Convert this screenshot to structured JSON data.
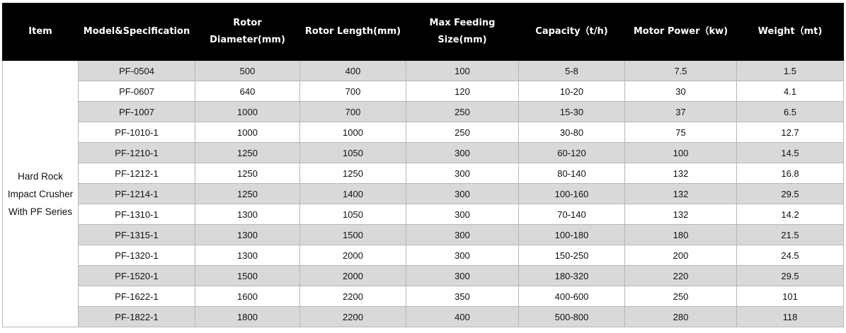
{
  "headers": [
    "Item",
    "Model&Specification",
    "Rotor Diameter(mm)",
    "Rotor Length(mm)",
    "Max Feeding Size(mm)",
    "Capacity（t/h)",
    "Motor Power（kw)",
    "Weight（mt)"
  ],
  "item_label": "Hard Rock Impact Crusher With PF Series",
  "rows": [
    [
      "PF-0504",
      "500",
      "400",
      "100",
      "5-8",
      "7.5",
      "1.5"
    ],
    [
      "PF-0607",
      "640",
      "700",
      "120",
      "10-20",
      "30",
      "4.1"
    ],
    [
      "PF-1007",
      "1000",
      "700",
      "250",
      "15-30",
      "37",
      "6.5"
    ],
    [
      "PF-1010-1",
      "1000",
      "1000",
      "250",
      "30-80",
      "75",
      "12.7"
    ],
    [
      "PF-1210-1",
      "1250",
      "1050",
      "300",
      "60-120",
      "100",
      "14.5"
    ],
    [
      "PF-1212-1",
      "1250",
      "1250",
      "300",
      "80-140",
      "132",
      "16.8"
    ],
    [
      "PF-1214-1",
      "1250",
      "1400",
      "300",
      "100-160",
      "132",
      "29.5"
    ],
    [
      "PF-1310-1",
      "1300",
      "1050",
      "300",
      "70-140",
      "132",
      "14.2"
    ],
    [
      "PF-1315-1",
      "1300",
      "1500",
      "300",
      "100-180",
      "180",
      "21.5"
    ],
    [
      "PF-1320-1",
      "1300",
      "2000",
      "300",
      "150-250",
      "200",
      "24.5"
    ],
    [
      "PF-1520-1",
      "1500",
      "2000",
      "300",
      "180-320",
      "220",
      "29.5"
    ],
    [
      "PF-1622-1",
      "1600",
      "2200",
      "350",
      "400-600",
      "250",
      "101"
    ],
    [
      "PF-1822-1",
      "1800",
      "2200",
      "400",
      "500-800",
      "280",
      "118"
    ]
  ],
  "colors": {
    "header_bg": "#000000",
    "header_fg": "#ffffff",
    "shade": "#d9d9d9"
  }
}
